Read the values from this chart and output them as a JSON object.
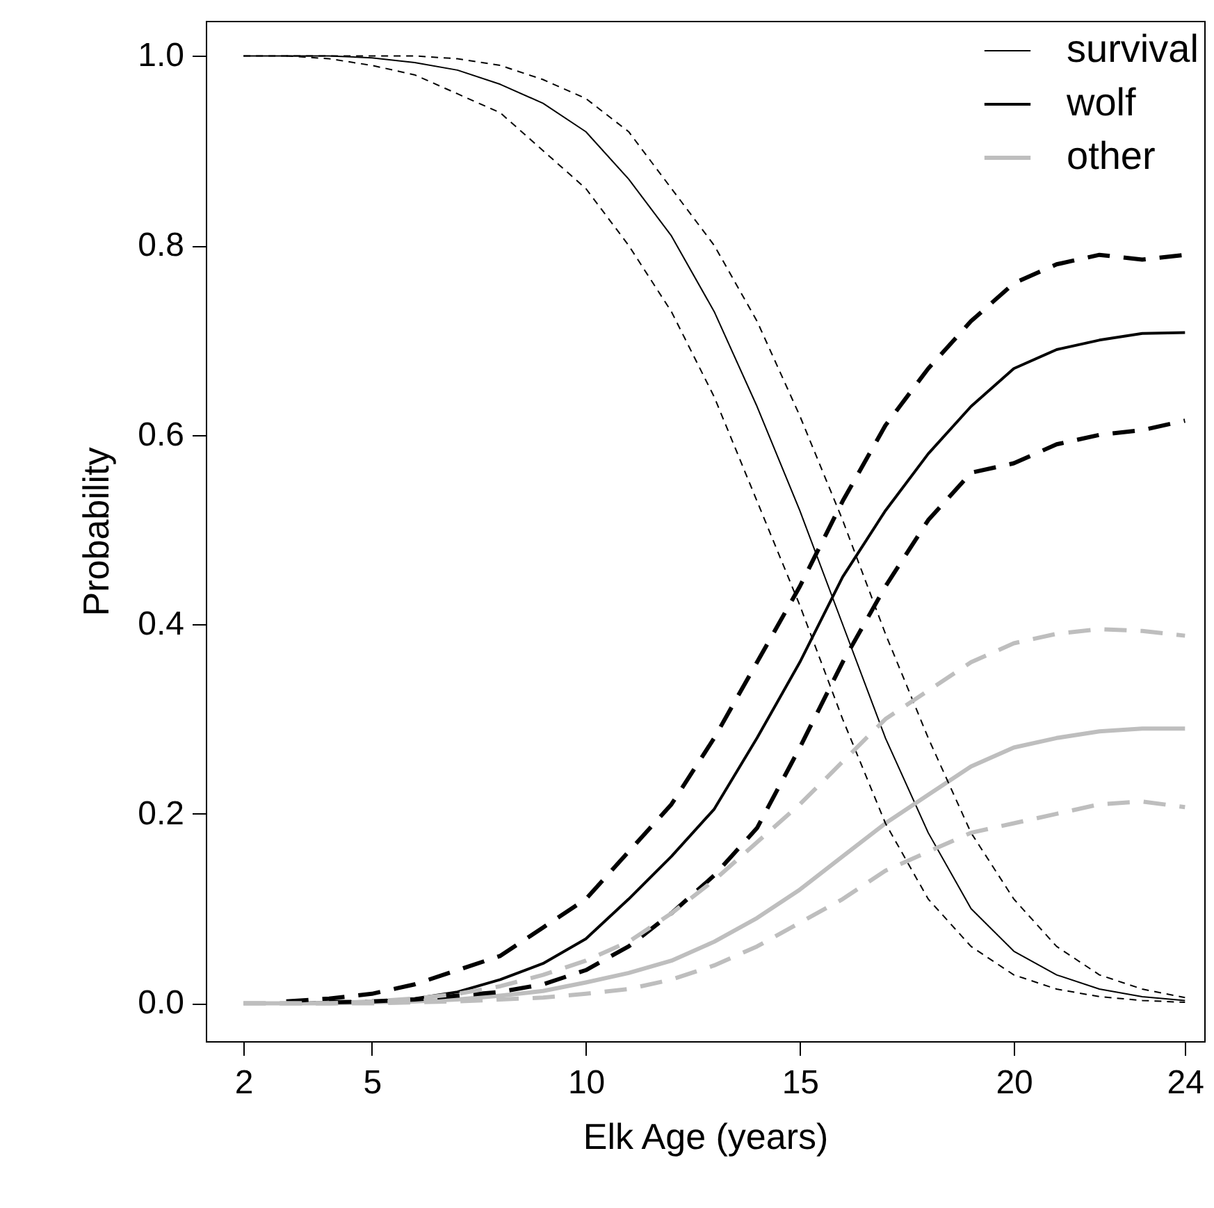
{
  "chart_data": {
    "type": "line",
    "xlabel": "Elk Age (years)",
    "ylabel": "Probability",
    "x": [
      2,
      3,
      4,
      5,
      6,
      7,
      8,
      9,
      10,
      11,
      12,
      13,
      14,
      15,
      16,
      17,
      18,
      19,
      20,
      21,
      22,
      23,
      24
    ],
    "series": [
      {
        "name": "survival",
        "color": "#000000",
        "line_style": "solid",
        "values": [
          1.0,
          1.0,
          1.0,
          0.998,
          0.993,
          0.985,
          0.97,
          0.95,
          0.92,
          0.87,
          0.81,
          0.73,
          0.63,
          0.52,
          0.4,
          0.28,
          0.18,
          0.1,
          0.055,
          0.03,
          0.015,
          0.007,
          0.003
        ]
      },
      {
        "name": "wolf",
        "color": "#000000",
        "line_style": "solid",
        "values": [
          0,
          0,
          0.001,
          0.002,
          0.005,
          0.012,
          0.025,
          0.042,
          0.068,
          0.11,
          0.155,
          0.205,
          0.28,
          0.36,
          0.45,
          0.52,
          0.58,
          0.63,
          0.67,
          0.69,
          0.7,
          0.707,
          0.708
        ]
      },
      {
        "name": "other",
        "color": "#bebebe",
        "line_style": "solid",
        "values": [
          0,
          0,
          0,
          0.001,
          0.002,
          0.004,
          0.008,
          0.013,
          0.022,
          0.032,
          0.045,
          0.065,
          0.09,
          0.12,
          0.155,
          0.19,
          0.22,
          0.25,
          0.27,
          0.28,
          0.287,
          0.29,
          0.29
        ]
      },
      {
        "color": "#000000",
        "line_style": "dashed",
        "values": [
          1.0,
          1.0,
          1.0,
          1.0,
          1.0,
          0.997,
          0.99,
          0.975,
          0.955,
          0.92,
          0.86,
          0.8,
          0.72,
          0.62,
          0.51,
          0.39,
          0.28,
          0.18,
          0.11,
          0.06,
          0.03,
          0.015,
          0.006
        ]
      },
      {
        "color": "#000000",
        "line_style": "dashed",
        "values": [
          null,
          1.0,
          0.997,
          0.99,
          0.98,
          0.96,
          0.94,
          0.9,
          0.86,
          0.8,
          0.73,
          0.64,
          0.53,
          0.42,
          0.3,
          0.19,
          0.11,
          0.06,
          0.03,
          0.015,
          0.007,
          0.003,
          0.001
        ]
      },
      {
        "color": "#000000",
        "line_style": "dashed",
        "values": [
          null,
          0.002,
          0.005,
          0.01,
          0.02,
          0.035,
          0.05,
          0.08,
          0.11,
          0.16,
          0.21,
          0.28,
          0.36,
          0.44,
          0.53,
          0.61,
          0.67,
          0.72,
          0.76,
          0.78,
          0.79,
          0.785,
          0.79
        ]
      },
      {
        "color": "#000000",
        "line_style": "dashed",
        "values": [
          null,
          null,
          0.001,
          0.002,
          0.004,
          0.008,
          0.012,
          0.02,
          0.035,
          0.06,
          0.095,
          0.135,
          0.185,
          0.27,
          0.36,
          0.44,
          0.51,
          0.56,
          0.57,
          0.59,
          0.6,
          0.605,
          0.615
        ]
      },
      {
        "color": "#bebebe",
        "line_style": "dashed",
        "values": [
          0,
          0,
          0,
          0.002,
          0.005,
          0.01,
          0.018,
          0.03,
          0.045,
          0.065,
          0.095,
          0.13,
          0.17,
          0.21,
          0.255,
          0.3,
          0.33,
          0.36,
          0.38,
          0.39,
          0.395,
          0.393,
          0.388
        ]
      },
      {
        "color": "#bebebe",
        "line_style": "dashed",
        "values": [
          0,
          0,
          0,
          0,
          0.001,
          0.002,
          0.004,
          0.006,
          0.01,
          0.015,
          0.025,
          0.04,
          0.06,
          0.085,
          0.11,
          0.14,
          0.16,
          0.18,
          0.19,
          0.2,
          0.21,
          0.213,
          0.207
        ]
      }
    ],
    "xlim": [
      1.12,
      24.45
    ],
    "xticks": [
      2,
      5,
      10,
      15,
      20,
      24
    ],
    "ylim": [
      -0.04,
      1.037
    ],
    "yticks": [
      {
        "value": 0,
        "label": "0.0"
      },
      {
        "value": 0.2,
        "label": "0.2"
      },
      {
        "value": 0.4,
        "label": "0.4"
      },
      {
        "value": 0.6,
        "label": "0.6"
      },
      {
        "value": 0.8,
        "label": "0.8"
      },
      {
        "value": 1,
        "label": "1.0"
      }
    ],
    "legend": "top right",
    "grid": false
  }
}
